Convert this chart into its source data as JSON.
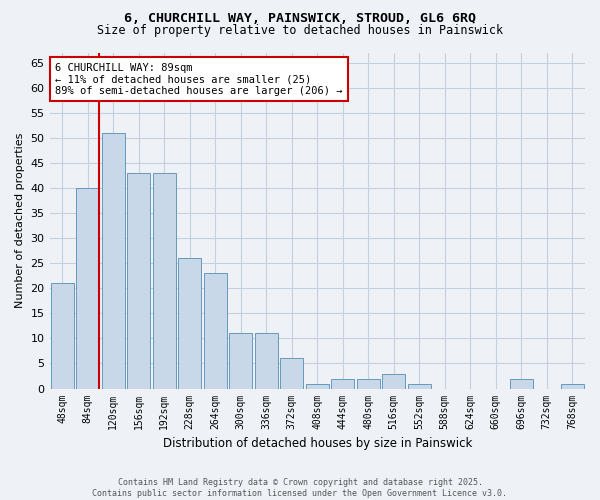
{
  "title_line1": "6, CHURCHILL WAY, PAINSWICK, STROUD, GL6 6RQ",
  "title_line2": "Size of property relative to detached houses in Painswick",
  "xlabel": "Distribution of detached houses by size in Painswick",
  "ylabel": "Number of detached properties",
  "bar_labels": [
    "48sqm",
    "84sqm",
    "120sqm",
    "156sqm",
    "192sqm",
    "228sqm",
    "264sqm",
    "300sqm",
    "336sqm",
    "372sqm",
    "408sqm",
    "444sqm",
    "480sqm",
    "516sqm",
    "552sqm",
    "588sqm",
    "624sqm",
    "660sqm",
    "696sqm",
    "732sqm",
    "768sqm"
  ],
  "bar_values": [
    21,
    40,
    51,
    43,
    43,
    26,
    23,
    11,
    11,
    6,
    1,
    2,
    2,
    3,
    1,
    0,
    0,
    0,
    2,
    0,
    1
  ],
  "bar_color": "#c8d8e8",
  "bar_edge_color": "#6699bb",
  "ylim": [
    0,
    67
  ],
  "yticks": [
    0,
    5,
    10,
    15,
    20,
    25,
    30,
    35,
    40,
    45,
    50,
    55,
    60,
    65
  ],
  "property_line_idx": 1,
  "property_line_color": "#cc0000",
  "annotation_text": "6 CHURCHILL WAY: 89sqm\n← 11% of detached houses are smaller (25)\n89% of semi-detached houses are larger (206) →",
  "annotation_box_color": "#ffffff",
  "annotation_box_edge": "#cc0000",
  "footer_line1": "Contains HM Land Registry data © Crown copyright and database right 2025.",
  "footer_line2": "Contains public sector information licensed under the Open Government Licence v3.0.",
  "background_color": "#eef2f7",
  "plot_bg_color": "#eef2f7",
  "grid_color": "#c5cfe0"
}
